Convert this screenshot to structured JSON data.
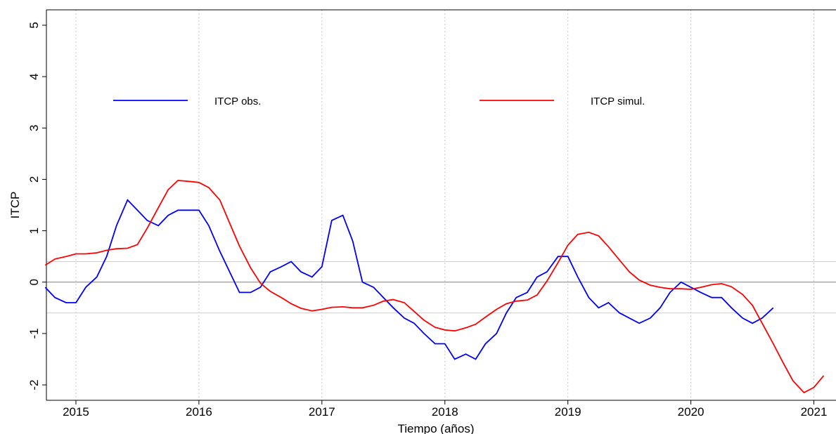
{
  "chart_data": {
    "type": "line",
    "xlabel": "Tiempo (años)",
    "ylabel": "ITCP",
    "x": [
      2014.75,
      2014.83,
      2014.92,
      2015.0,
      2015.08,
      2015.17,
      2015.25,
      2015.33,
      2015.42,
      2015.5,
      2015.58,
      2015.67,
      2015.75,
      2015.83,
      2015.92,
      2016.0,
      2016.08,
      2016.17,
      2016.25,
      2016.33,
      2016.42,
      2016.5,
      2016.58,
      2016.67,
      2016.75,
      2016.83,
      2016.92,
      2017.0,
      2017.08,
      2017.17,
      2017.25,
      2017.33,
      2017.42,
      2017.5,
      2017.58,
      2017.67,
      2017.75,
      2017.83,
      2017.92,
      2018.0,
      2018.08,
      2018.17,
      2018.25,
      2018.33,
      2018.42,
      2018.5,
      2018.58,
      2018.67,
      2018.75,
      2018.83,
      2018.92,
      2019.0,
      2019.08,
      2019.17,
      2019.25,
      2019.33,
      2019.42,
      2019.5,
      2019.58,
      2019.67,
      2019.75,
      2019.83,
      2019.92,
      2020.0,
      2020.08,
      2020.17,
      2020.25,
      2020.33,
      2020.42,
      2020.5,
      2020.58,
      2020.67,
      2020.75,
      2020.83,
      2020.92,
      2021.0,
      2021.08
    ],
    "series": [
      {
        "name": "ITCP obs.",
        "color": "#0000ff",
        "values": [
          -0.1,
          -0.3,
          -0.4,
          -0.4,
          -0.1,
          0.1,
          0.5,
          1.1,
          1.6,
          1.4,
          1.2,
          1.1,
          1.3,
          1.4,
          1.4,
          1.4,
          1.1,
          0.6,
          0.2,
          -0.2,
          -0.2,
          -0.1,
          0.2,
          0.3,
          0.4,
          0.2,
          0.1,
          0.3,
          1.2,
          1.3,
          0.8,
          0.0,
          -0.1,
          -0.3,
          -0.5,
          -0.7,
          -0.8,
          -1.0,
          -1.2,
          -1.2,
          -1.5,
          -1.4,
          -1.5,
          -1.2,
          -1.0,
          -0.6,
          -0.3,
          -0.2,
          0.1,
          0.2,
          0.5,
          0.5,
          0.1,
          -0.3,
          -0.5,
          -0.4,
          -0.6,
          -0.7,
          -0.8,
          -0.7,
          -0.5,
          -0.2,
          0.0,
          -0.1,
          -0.2,
          -0.3,
          -0.3,
          -0.5,
          -0.7,
          -0.8,
          -0.7,
          -0.5,
          null,
          null,
          null,
          null,
          null
        ]
      },
      {
        "name": "ITCP simul.",
        "color": "#ff0000",
        "values": [
          0.33,
          0.45,
          0.5,
          0.55,
          0.55,
          0.57,
          0.62,
          0.65,
          0.66,
          0.73,
          1.05,
          1.45,
          1.8,
          1.98,
          1.96,
          1.94,
          1.84,
          1.6,
          1.15,
          0.7,
          0.28,
          -0.02,
          -0.18,
          -0.3,
          -0.42,
          -0.51,
          -0.56,
          -0.53,
          -0.49,
          -0.48,
          -0.5,
          -0.5,
          -0.45,
          -0.37,
          -0.34,
          -0.4,
          -0.57,
          -0.74,
          -0.88,
          -0.93,
          -0.95,
          -0.89,
          -0.82,
          -0.68,
          -0.53,
          -0.42,
          -0.37,
          -0.35,
          -0.25,
          0.02,
          0.38,
          0.72,
          0.93,
          0.97,
          0.9,
          0.69,
          0.43,
          0.2,
          0.04,
          -0.06,
          -0.1,
          -0.13,
          -0.13,
          -0.14,
          -0.1,
          -0.05,
          -0.03,
          -0.09,
          -0.24,
          -0.45,
          -0.8,
          -1.2,
          -1.57,
          -1.92,
          -2.15,
          -2.05,
          -1.82
        ]
      }
    ],
    "xlim": [
      2014.76,
      2021.18
    ],
    "xticks": [
      2015,
      2016,
      2017,
      2018,
      2019,
      2020,
      2021
    ],
    "ylim": [
      -2.3,
      5.3
    ],
    "yticks": [
      -2,
      -1,
      0,
      1,
      2,
      3,
      4,
      5
    ],
    "hlines": [
      0.4,
      -0.6
    ],
    "zero_line": 0,
    "xgrid": true
  }
}
